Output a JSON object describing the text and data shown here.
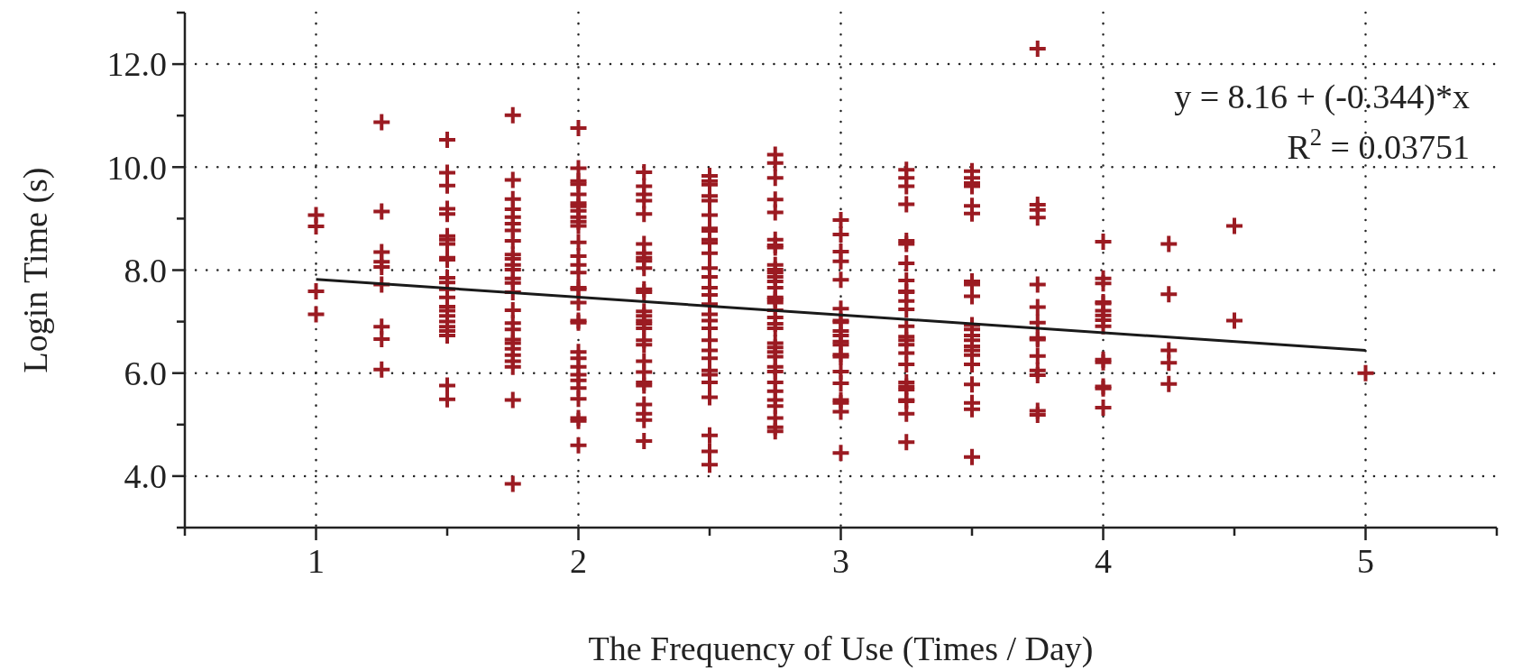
{
  "chart_data": {
    "type": "scatter",
    "xlabel": "The Frequency of Use (Times / Day)",
    "ylabel": "Login Time (s)",
    "xlim": [
      0.5,
      5.5
    ],
    "xticks": [
      {
        "value": 0.5,
        "label": null
      },
      1,
      {
        "value": 1.5,
        "label": null
      },
      2,
      {
        "value": 2.5,
        "label": null
      },
      3,
      {
        "value": 3.5,
        "label": null
      },
      4,
      {
        "value": 4.5,
        "label": null
      },
      5,
      {
        "value": 5.5,
        "label": null
      }
    ],
    "ylim": [
      3,
      13
    ],
    "yticks": [
      {
        "value": 3,
        "label": null
      },
      {
        "value": 4,
        "label": "4.0"
      },
      {
        "value": 5,
        "label": null
      },
      {
        "value": 6,
        "label": "6.0"
      },
      {
        "value": 7,
        "label": null
      },
      {
        "value": 8,
        "label": "8.0"
      },
      {
        "value": 9,
        "label": null
      },
      {
        "value": 10,
        "label": "10.0"
      },
      {
        "value": 11,
        "label": null
      },
      {
        "value": 12,
        "label": "12.0"
      },
      {
        "value": 13,
        "label": null
      }
    ],
    "grid": true,
    "marker": "cross",
    "annotations": [
      "y = 8.16 + (-0.344)*x",
      "R$^{2}$ = 0.03751"
    ],
    "series": [
      {
        "color": "#9b1b22",
        "x": [
          1,
          1,
          1,
          1,
          1.25,
          1.25,
          1.25,
          1.25,
          1.25,
          1.25,
          1.25,
          1.25,
          1.25,
          1.5,
          1.5,
          1.5,
          1.5,
          1.5,
          1.5,
          1.5,
          1.5,
          1.5,
          1.5,
          1.5,
          1.5,
          1.5,
          1.5,
          1.5,
          1.5,
          1.5,
          1.5,
          1.5,
          1.5,
          1.5,
          1.5,
          1.5,
          1.75,
          1.75,
          1.75,
          1.75,
          1.75,
          1.75,
          1.75,
          1.75,
          1.75,
          1.75,
          1.75,
          1.75,
          1.75,
          1.75,
          1.75,
          1.75,
          1.75,
          1.75,
          1.75,
          1.75,
          1.75,
          1.75,
          1.75,
          1.75,
          1.75,
          1.75,
          2,
          2,
          2,
          2,
          2,
          2,
          2,
          2,
          2,
          2,
          2,
          2,
          2,
          2,
          2,
          2,
          2,
          2,
          2,
          2,
          2,
          2,
          2,
          2,
          2,
          2,
          2,
          2,
          2,
          2,
          2.25,
          2.25,
          2.25,
          2.25,
          2.25,
          2.25,
          2.25,
          2.25,
          2.25,
          2.25,
          2.25,
          2.25,
          2.25,
          2.25,
          2.25,
          2.25,
          2.25,
          2.25,
          2.25,
          2.25,
          2.25,
          2.25,
          2.25,
          2.25,
          2.25,
          2.25,
          2.25,
          2.5,
          2.5,
          2.5,
          2.5,
          2.5,
          2.5,
          2.5,
          2.5,
          2.5,
          2.5,
          2.5,
          2.5,
          2.5,
          2.5,
          2.5,
          2.5,
          2.5,
          2.5,
          2.5,
          2.5,
          2.5,
          2.5,
          2.5,
          2.5,
          2.5,
          2.5,
          2.5,
          2.5,
          2.5,
          2.75,
          2.75,
          2.75,
          2.75,
          2.75,
          2.75,
          2.75,
          2.75,
          2.75,
          2.75,
          2.75,
          2.75,
          2.75,
          2.75,
          2.75,
          2.75,
          2.75,
          2.75,
          2.75,
          2.75,
          2.75,
          2.75,
          2.75,
          2.75,
          2.75,
          2.75,
          2.75,
          2.75,
          2.75,
          2.75,
          2.75,
          2.75,
          2.75,
          2.75,
          3,
          3,
          3,
          3,
          3,
          3,
          3,
          3,
          3,
          3,
          3,
          3,
          3,
          3,
          3,
          3,
          3,
          3,
          3,
          3,
          3.25,
          3.25,
          3.25,
          3.25,
          3.25,
          3.25,
          3.25,
          3.25,
          3.25,
          3.25,
          3.25,
          3.25,
          3.25,
          3.25,
          3.25,
          3.25,
          3.25,
          3.25,
          3.25,
          3.25,
          3.25,
          3.25,
          3.25,
          3.25,
          3.25,
          3.5,
          3.5,
          3.5,
          3.5,
          3.5,
          3.5,
          3.5,
          3.5,
          3.5,
          3.5,
          3.5,
          3.5,
          3.5,
          3.5,
          3.5,
          3.5,
          3.5,
          3.5,
          3.5,
          3.5,
          3.5,
          3.75,
          3.75,
          3.75,
          3.75,
          3.75,
          3.75,
          3.75,
          3.75,
          3.75,
          3.75,
          3.75,
          3.75,
          3.75,
          3.75,
          4,
          4,
          4,
          4,
          4,
          4,
          4,
          4,
          4,
          4,
          4,
          4,
          4,
          4,
          4.25,
          4.25,
          4.25,
          4.25,
          4.25,
          4.5,
          4.5,
          5
        ],
        "values": [
          9.07,
          8.85,
          7.59,
          7.14,
          10.87,
          9.14,
          8.35,
          8.16,
          8.06,
          7.72,
          6.9,
          6.66,
          6.07,
          10.53,
          9.89,
          9.64,
          9.19,
          9.09,
          8.66,
          8.59,
          8.51,
          8.24,
          8.2,
          7.85,
          7.76,
          7.63,
          7.47,
          7.29,
          7.21,
          7.11,
          7,
          6.9,
          6.82,
          6.73,
          5.76,
          5.49,
          11.01,
          9.75,
          9.38,
          9.18,
          9.03,
          8.9,
          8.77,
          8.57,
          8.3,
          8.22,
          8.1,
          8.01,
          7.84,
          7.75,
          7.57,
          7.22,
          6.97,
          6.85,
          6.65,
          6.58,
          6.47,
          6.35,
          6.23,
          6.12,
          5.48,
          3.85,
          10.76,
          9.98,
          9.73,
          9.67,
          9.47,
          9.3,
          9.24,
          9.15,
          9.03,
          8.94,
          8.86,
          8.54,
          8.27,
          8.1,
          7.95,
          7.66,
          7.63,
          7.37,
          7.02,
          6.98,
          6.41,
          6.29,
          6.12,
          5.97,
          5.86,
          5.71,
          5.5,
          5.13,
          5.07,
          4.6,
          9.9,
          9.63,
          9.47,
          9.35,
          9.09,
          8.51,
          8.33,
          8.24,
          8.18,
          8.04,
          7.63,
          7.57,
          7.2,
          7.11,
          7.02,
          6.96,
          6.87,
          6.64,
          6.55,
          6.23,
          6.02,
          5.82,
          5.76,
          5.39,
          5.21,
          5.09,
          4.68,
          9.83,
          9.73,
          9.66,
          9.44,
          9.35,
          9.07,
          8.81,
          8.76,
          8.59,
          8.53,
          8.33,
          8.04,
          7.87,
          7.66,
          7.52,
          7.34,
          7.14,
          7.02,
          6.87,
          6.64,
          6.44,
          6.29,
          6.05,
          5.97,
          5.82,
          5.53,
          4.79,
          4.48,
          4.22,
          10.24,
          10.08,
          9.79,
          9.37,
          9.12,
          8.59,
          8.48,
          8.44,
          8.1,
          8.01,
          7.95,
          7.87,
          7.78,
          7.66,
          7.47,
          7.43,
          7.37,
          7.22,
          7.08,
          6.96,
          6.87,
          6.58,
          6.5,
          6.41,
          6.32,
          6.12,
          6.03,
          5.82,
          5.65,
          5.48,
          5.36,
          5.13,
          4.95,
          4.87,
          8.97,
          8.69,
          8.36,
          8.17,
          7.81,
          7.25,
          7.02,
          6.99,
          6.82,
          6.73,
          6.61,
          6.55,
          6.36,
          6.32,
          6.03,
          5.8,
          5.48,
          5.42,
          5.25,
          4.45,
          9.95,
          9.79,
          9.63,
          9.28,
          8.57,
          8.51,
          8.13,
          7.8,
          7.59,
          7.57,
          7.4,
          7.24,
          6.91,
          6.71,
          6.64,
          6.55,
          6.39,
          6.17,
          5.82,
          5.74,
          5.68,
          5.48,
          5.45,
          5.21,
          4.66,
          9.92,
          9.79,
          9.69,
          9.63,
          9.25,
          9.1,
          7.78,
          7.72,
          7.49,
          6.93,
          6.85,
          6.73,
          6.64,
          6.52,
          6.44,
          6.35,
          6.17,
          5.78,
          5.42,
          5.3,
          4.37,
          12.3,
          9.27,
          9.17,
          9.02,
          7.72,
          7.28,
          6.98,
          6.68,
          6.65,
          6.33,
          6.05,
          5.96,
          5.27,
          5.19,
          8.55,
          7.84,
          7.74,
          7.38,
          7.35,
          7.21,
          7.12,
          7.03,
          6.91,
          6.26,
          6.21,
          5.74,
          5.7,
          5.33,
          8.51,
          7.53,
          6.44,
          6.2,
          5.79,
          8.86,
          7.02,
          6
        ]
      },
      {
        "type": "line",
        "color": "#1a1a1a",
        "marker": "none",
        "line_style": "solid",
        "x": [
          1,
          5
        ],
        "values": [
          7.82,
          6.44
        ]
      }
    ]
  }
}
